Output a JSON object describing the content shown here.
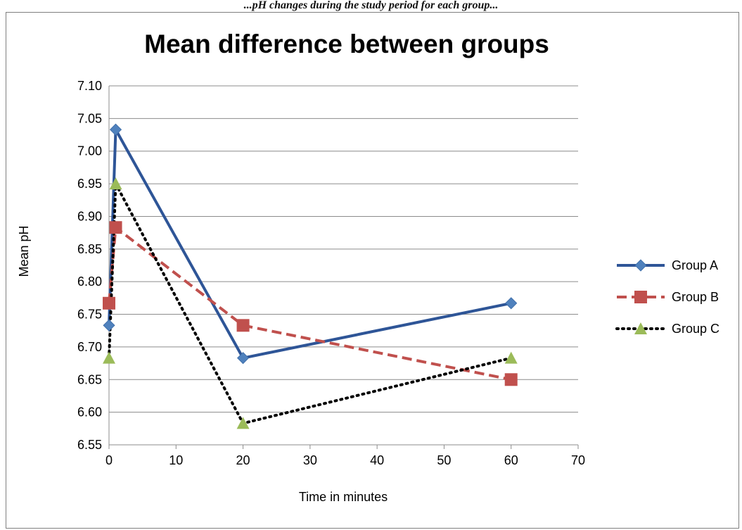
{
  "caption": "...pH changes during the study period for each group...",
  "chart_data": {
    "type": "line",
    "title": "Mean difference between groups",
    "xlabel": "Time in minutes",
    "ylabel": "Mean pH",
    "xlim": [
      0,
      70
    ],
    "ylim": [
      6.55,
      7.1
    ],
    "xticks": [
      "0",
      "10",
      "20",
      "30",
      "40",
      "50",
      "60",
      "70"
    ],
    "yticks": [
      "6.55",
      "6.60",
      "6.65",
      "6.70",
      "6.75",
      "6.80",
      "6.85",
      "6.90",
      "6.95",
      "7.00",
      "7.05",
      "7.10"
    ],
    "grid": "horizontal",
    "legend_position": "right",
    "series": [
      {
        "name": "Group A",
        "x": [
          0,
          1,
          20,
          60
        ],
        "y": [
          6.733,
          7.033,
          6.683,
          6.767
        ],
        "color": "#2E5597",
        "marker_color": "#4F81BD",
        "marker": "diamond",
        "line_style": "solid"
      },
      {
        "name": "Group B",
        "x": [
          0,
          1,
          20,
          60
        ],
        "y": [
          6.767,
          6.883,
          6.733,
          6.65
        ],
        "color": "#C0504D",
        "marker_color": "#C0504D",
        "marker": "square",
        "line_style": "dashed"
      },
      {
        "name": "Group C",
        "x": [
          0,
          1,
          20,
          60
        ],
        "y": [
          6.683,
          6.95,
          6.583,
          6.683
        ],
        "color": "#000000",
        "marker_color": "#9BBB59",
        "marker": "triangle",
        "line_style": "dotted"
      }
    ]
  }
}
